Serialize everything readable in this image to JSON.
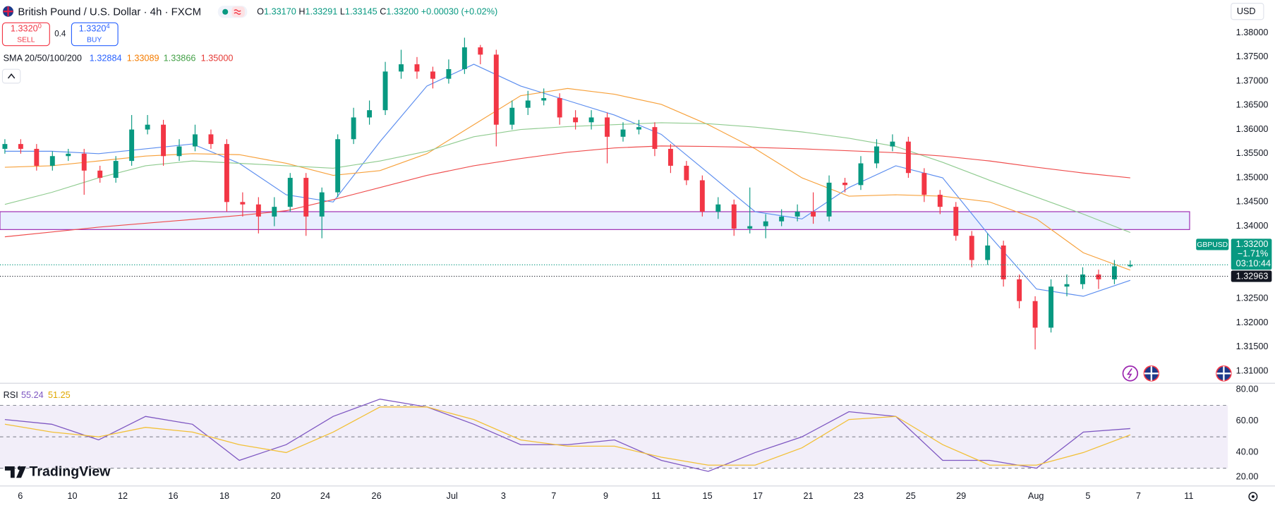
{
  "ui": {
    "title": "British Pound / U.S. Dollar · 4h · FXCM",
    "ohlc": [
      {
        "k": "O",
        "v": "1.33170"
      },
      {
        "k": "H",
        "v": "1.33291"
      },
      {
        "k": "L",
        "v": "1.33145"
      },
      {
        "k": "C",
        "v": "1.33200"
      }
    ],
    "change": "+0.00030 (+0.02%)",
    "sell": {
      "price": "1.3320",
      "pip": "0",
      "label": "SELL"
    },
    "spread": "0.4",
    "buy": {
      "price": "1.3320",
      "pip": "4",
      "label": "BUY"
    },
    "currency": "USD",
    "brand": "TradingView",
    "time_labels": [
      "6",
      "10",
      "12",
      "16",
      "18",
      "20",
      "24",
      "26",
      "Jul",
      "3",
      "7",
      "9",
      "11",
      "15",
      "17",
      "21",
      "23",
      "25",
      "29",
      "Aug",
      "5",
      "7",
      "11"
    ]
  },
  "chart_data": [
    {
      "type": "candlestick",
      "legend_title": "SMA 20/50/100/200",
      "up_color": "#089981",
      "down_color": "#f23645",
      "ylim": [
        1.3075,
        1.3868
      ],
      "yticks": [
        {
          "value": 1.38,
          "label": "1.38000"
        },
        {
          "value": 1.375,
          "label": "1.37500"
        },
        {
          "value": 1.37,
          "label": "1.37000"
        },
        {
          "value": 1.365,
          "label": "1.36500"
        },
        {
          "value": 1.36,
          "label": "1.36000"
        },
        {
          "value": 1.355,
          "label": "1.35500"
        },
        {
          "value": 1.35,
          "label": "1.35000"
        },
        {
          "value": 1.345,
          "label": "1.34500"
        },
        {
          "value": 1.34,
          "label": "1.34000"
        },
        {
          "value": 1.325,
          "label": "1.32500"
        },
        {
          "value": 1.32,
          "label": "1.32000"
        },
        {
          "value": 1.315,
          "label": "1.31500"
        },
        {
          "value": 1.31,
          "label": "1.31000"
        }
      ],
      "grid": true,
      "open": [
        1.356,
        1.357,
        1.356,
        1.3525,
        1.3545,
        1.355,
        1.3515,
        1.35,
        1.3535,
        1.36,
        1.361,
        1.3545,
        1.3565,
        1.359,
        1.357,
        1.345,
        1.3445,
        1.342,
        1.344,
        1.35,
        1.342,
        1.347,
        1.358,
        1.3625,
        1.364,
        1.372,
        1.3735,
        1.372,
        1.3705,
        1.3725,
        1.377,
        1.3755,
        1.361,
        1.3645,
        1.366,
        1.3665,
        1.3625,
        1.3615,
        1.3625,
        1.3585,
        1.36,
        1.3605,
        1.356,
        1.3525,
        1.3495,
        1.343,
        1.3445,
        1.3395,
        1.34,
        1.341,
        1.342,
        1.343,
        1.342,
        1.349,
        1.3485,
        1.353,
        1.3565,
        1.3575,
        1.351,
        1.3465,
        1.344,
        1.338,
        1.333,
        1.336,
        1.329,
        1.3245,
        1.319,
        1.3275,
        1.328,
        1.33,
        1.329,
        1.3317
      ],
      "high": [
        1.358,
        1.358,
        1.357,
        1.3555,
        1.356,
        1.356,
        1.3525,
        1.3545,
        1.363,
        1.363,
        1.362,
        1.358,
        1.361,
        1.36,
        1.358,
        1.347,
        1.346,
        1.346,
        1.351,
        1.351,
        1.348,
        1.359,
        1.3645,
        1.366,
        1.374,
        1.3765,
        1.375,
        1.373,
        1.3745,
        1.379,
        1.3775,
        1.3765,
        1.366,
        1.368,
        1.3685,
        1.3675,
        1.364,
        1.364,
        1.3635,
        1.3615,
        1.362,
        1.3615,
        1.357,
        1.3535,
        1.3505,
        1.346,
        1.3455,
        1.348,
        1.3425,
        1.3435,
        1.3445,
        1.347,
        1.3505,
        1.35,
        1.3545,
        1.358,
        1.359,
        1.3585,
        1.352,
        1.3475,
        1.345,
        1.339,
        1.3385,
        1.337,
        1.33,
        1.3255,
        1.329,
        1.33,
        1.3315,
        1.331,
        1.333,
        1.33291
      ],
      "low": [
        1.355,
        1.355,
        1.3515,
        1.3515,
        1.3535,
        1.3465,
        1.349,
        1.349,
        1.3525,
        1.359,
        1.3525,
        1.3535,
        1.3555,
        1.356,
        1.343,
        1.342,
        1.3385,
        1.34,
        1.343,
        1.338,
        1.3375,
        1.346,
        1.357,
        1.361,
        1.363,
        1.3705,
        1.3705,
        1.3685,
        1.3695,
        1.3715,
        1.3735,
        1.3565,
        1.36,
        1.363,
        1.365,
        1.361,
        1.36,
        1.36,
        1.353,
        1.3575,
        1.359,
        1.3545,
        1.351,
        1.3485,
        1.342,
        1.3415,
        1.338,
        1.3385,
        1.3375,
        1.34,
        1.341,
        1.3405,
        1.341,
        1.347,
        1.3475,
        1.352,
        1.3555,
        1.35,
        1.345,
        1.3425,
        1.337,
        1.3315,
        1.332,
        1.3275,
        1.323,
        1.3145,
        1.318,
        1.3255,
        1.327,
        1.327,
        1.328,
        1.33145
      ],
      "close": [
        1.357,
        1.356,
        1.3525,
        1.3545,
        1.355,
        1.3515,
        1.35,
        1.3535,
        1.36,
        1.361,
        1.3545,
        1.3565,
        1.359,
        1.357,
        1.345,
        1.3445,
        1.342,
        1.344,
        1.35,
        1.342,
        1.347,
        1.358,
        1.3625,
        1.364,
        1.372,
        1.3735,
        1.372,
        1.3705,
        1.3725,
        1.377,
        1.3755,
        1.361,
        1.3645,
        1.366,
        1.3665,
        1.3625,
        1.3615,
        1.3625,
        1.3585,
        1.36,
        1.3605,
        1.356,
        1.3525,
        1.3495,
        1.343,
        1.3445,
        1.3395,
        1.34,
        1.341,
        1.342,
        1.343,
        1.342,
        1.349,
        1.3485,
        1.353,
        1.3565,
        1.3575,
        1.351,
        1.3465,
        1.344,
        1.338,
        1.333,
        1.336,
        1.329,
        1.3245,
        1.319,
        1.3275,
        1.328,
        1.33,
        1.329,
        1.3317,
        1.332
      ],
      "overlays": [
        {
          "color": "#5b8def",
          "label": "1.32884",
          "values": [
            1.3555,
            1.3555,
            1.355,
            1.356,
            1.357,
            1.353,
            1.3465,
            1.345,
            1.3575,
            1.369,
            1.3735,
            1.369,
            1.366,
            1.363,
            1.359,
            1.351,
            1.343,
            1.3415,
            1.348,
            1.3525,
            1.35,
            1.338,
            1.327,
            1.3255,
            1.3288
          ]
        },
        {
          "color": "#f7a13b",
          "label": "1.33089",
          "values": [
            1.3522,
            1.3525,
            1.3535,
            1.3545,
            1.355,
            1.3548,
            1.353,
            1.3505,
            1.3515,
            1.355,
            1.361,
            1.367,
            1.3685,
            1.3673,
            1.3652,
            1.361,
            1.356,
            1.35,
            1.3462,
            1.3465,
            1.3462,
            1.345,
            1.3415,
            1.3345,
            1.3309
          ]
        },
        {
          "color": "#8fcb8f",
          "label": "1.33866",
          "values": [
            1.3445,
            1.347,
            1.35,
            1.3525,
            1.3535,
            1.353,
            1.3525,
            1.352,
            1.3535,
            1.3555,
            1.3585,
            1.36,
            1.3606,
            1.361,
            1.3614,
            1.3612,
            1.3605,
            1.3595,
            1.3582,
            1.3565,
            1.3532,
            1.3495,
            1.346,
            1.3425,
            1.3387
          ]
        },
        {
          "color": "#ef4d4d",
          "label": "1.35000",
          "values": [
            1.3378,
            1.3388,
            1.3398,
            1.3406,
            1.3414,
            1.3422,
            1.3432,
            1.3455,
            1.348,
            1.3505,
            1.3525,
            1.354,
            1.3553,
            1.3562,
            1.3566,
            1.3565,
            1.3563,
            1.356,
            1.3556,
            1.3552,
            1.3545,
            1.3535,
            1.3522,
            1.351,
            1.35
          ]
        }
      ],
      "zone": [
        1.3393,
        1.343
      ],
      "zone_color": "#9c27b0",
      "symbol": "GBPUSD",
      "last_price": {
        "value": 1.332,
        "label": "1.33200"
      },
      "change_pct": "−1.71%",
      "countdown": "03:10:44",
      "bid_line": {
        "value": 1.32963,
        "label": "1.32963"
      }
    },
    {
      "type": "line",
      "title": "RSI",
      "ylim": [
        19.2,
        83.6
      ],
      "yticks": [
        {
          "value": 80,
          "label": "80.00"
        },
        {
          "value": 60,
          "label": "60.00"
        },
        {
          "value": 40,
          "label": "40.00"
        },
        {
          "value": 20,
          "label": "20.00"
        }
      ],
      "bands": [
        30,
        70
      ],
      "midline": 50,
      "band_color": "#7e57c2",
      "series": [
        {
          "color": "#7e57c2",
          "label": "55.24",
          "values": [
            61,
            58,
            48,
            63,
            58,
            35,
            45,
            63,
            74,
            69,
            58,
            45,
            45,
            48,
            35,
            28,
            40,
            50,
            66,
            63,
            35,
            35,
            30,
            53,
            55.24
          ]
        },
        {
          "color": "#f2c037",
          "label": "51.25",
          "values": [
            58,
            53,
            50,
            56,
            53,
            45,
            40,
            53,
            69,
            69,
            61,
            48,
            44,
            44,
            37,
            32,
            32,
            43,
            61,
            63,
            45,
            32,
            32,
            40,
            51.25
          ]
        }
      ]
    }
  ]
}
